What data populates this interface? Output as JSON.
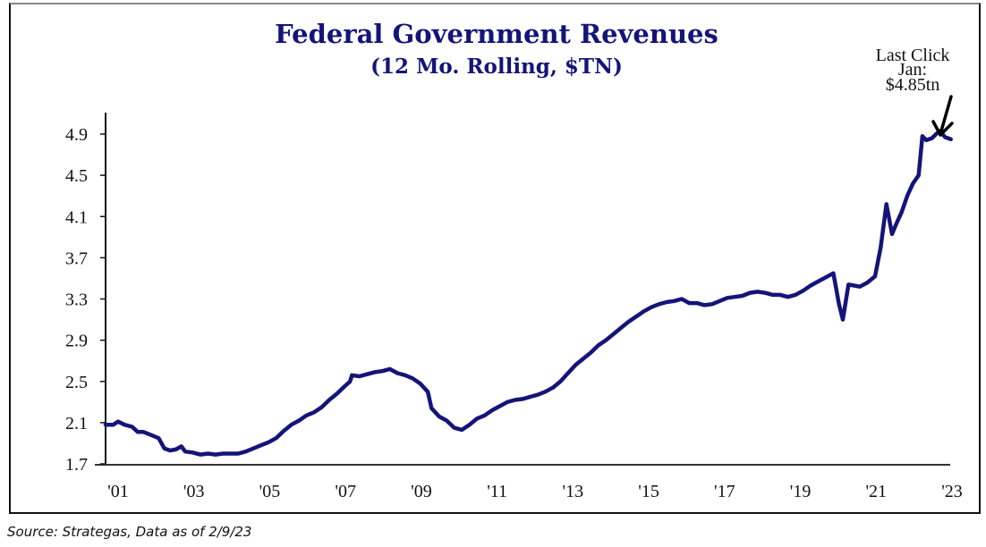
{
  "chart_data": {
    "type": "line",
    "title": "Federal Government Revenues",
    "subtitle": "(12 Mo. Rolling, $TN)",
    "xlabel": "",
    "ylabel": "",
    "ylim": [
      1.7,
      5.1
    ],
    "xlim": [
      2001.0,
      2023.0
    ],
    "y_ticks": [
      1.7,
      2.1,
      2.5,
      2.9,
      3.3,
      3.7,
      4.1,
      4.5,
      4.9
    ],
    "y_tick_labels": [
      "1.7",
      "2.1",
      "2.5",
      "2.9",
      "3.3",
      "3.7",
      "4.1",
      "4.5",
      "4.9"
    ],
    "x_ticks": [
      2001,
      2003,
      2005,
      2007,
      2009,
      2011,
      2013,
      2015,
      2017,
      2019,
      2021,
      2023
    ],
    "x_tick_labels": [
      "'01",
      "'03",
      "'05",
      "'07",
      "'09",
      "'11",
      "'13",
      "'15",
      "'17",
      "'19",
      "'21",
      "'23"
    ],
    "grid": false,
    "legend": "none",
    "line_color": "#14147a",
    "series": [
      {
        "name": "Federal Government Revenues (12 Mo. Rolling, $TN)",
        "x": [
          2001.0,
          2001.2,
          2001.33,
          2001.5,
          2001.7,
          2001.85,
          2002.0,
          2002.2,
          2002.4,
          2002.55,
          2002.7,
          2002.85,
          2003.0,
          2003.1,
          2003.3,
          2003.5,
          2003.7,
          2003.9,
          2004.1,
          2004.3,
          2004.5,
          2004.7,
          2004.9,
          2005.1,
          2005.3,
          2005.5,
          2005.7,
          2005.9,
          2006.1,
          2006.3,
          2006.5,
          2006.7,
          2006.9,
          2007.1,
          2007.3,
          2007.45,
          2007.5,
          2007.7,
          2007.9,
          2008.1,
          2008.3,
          2008.5,
          2008.7,
          2008.9,
          2009.1,
          2009.3,
          2009.5,
          2009.6,
          2009.8,
          2010.0,
          2010.2,
          2010.4,
          2010.6,
          2010.8,
          2011.0,
          2011.2,
          2011.4,
          2011.6,
          2011.8,
          2012.0,
          2012.2,
          2012.4,
          2012.6,
          2012.8,
          2013.0,
          2013.2,
          2013.4,
          2013.6,
          2013.8,
          2014.0,
          2014.2,
          2014.4,
          2014.6,
          2014.8,
          2015.0,
          2015.2,
          2015.4,
          2015.6,
          2015.8,
          2016.0,
          2016.2,
          2016.4,
          2016.6,
          2016.8,
          2017.0,
          2017.2,
          2017.4,
          2017.6,
          2017.8,
          2018.0,
          2018.2,
          2018.4,
          2018.6,
          2018.8,
          2019.0,
          2019.2,
          2019.4,
          2019.6,
          2019.8,
          2020.0,
          2020.2,
          2020.35,
          2020.45,
          2020.6,
          2020.75,
          2020.9,
          2021.1,
          2021.3,
          2021.45,
          2021.6,
          2021.75,
          2021.85,
          2022.0,
          2022.15,
          2022.3,
          2022.45,
          2022.55,
          2022.65,
          2022.8,
          2023.0,
          2023.15,
          2023.3
        ],
        "y": [
          2.08,
          2.08,
          2.11,
          2.08,
          2.06,
          2.01,
          2.01,
          1.98,
          1.95,
          1.85,
          1.83,
          1.84,
          1.87,
          1.82,
          1.81,
          1.79,
          1.8,
          1.79,
          1.8,
          1.8,
          1.8,
          1.82,
          1.85,
          1.88,
          1.91,
          1.95,
          2.02,
          2.08,
          2.12,
          2.17,
          2.2,
          2.25,
          2.32,
          2.38,
          2.45,
          2.5,
          2.56,
          2.55,
          2.57,
          2.59,
          2.6,
          2.62,
          2.58,
          2.56,
          2.53,
          2.48,
          2.4,
          2.24,
          2.16,
          2.12,
          2.05,
          2.03,
          2.08,
          2.14,
          2.17,
          2.22,
          2.26,
          2.3,
          2.32,
          2.33,
          2.35,
          2.37,
          2.4,
          2.44,
          2.5,
          2.58,
          2.66,
          2.72,
          2.78,
          2.85,
          2.9,
          2.96,
          3.02,
          3.08,
          3.13,
          3.18,
          3.22,
          3.25,
          3.27,
          3.28,
          3.3,
          3.26,
          3.26,
          3.24,
          3.25,
          3.28,
          3.31,
          3.32,
          3.33,
          3.36,
          3.37,
          3.36,
          3.34,
          3.34,
          3.32,
          3.34,
          3.38,
          3.43,
          3.47,
          3.51,
          3.55,
          3.25,
          3.1,
          3.44,
          3.43,
          3.42,
          3.46,
          3.52,
          3.8,
          4.22,
          3.93,
          4.02,
          4.14,
          4.3,
          4.42,
          4.5,
          4.88,
          4.84,
          4.86,
          4.93,
          4.87,
          4.85
        ]
      }
    ],
    "annotations": [
      {
        "lines": [
          "Last Click",
          "Jan:",
          "$4.85tn"
        ],
        "points_to_value": 4.85,
        "arrow": "down-left"
      }
    ]
  },
  "footer": {
    "source": "Source: Strategas, Data as of 2/9/23"
  }
}
